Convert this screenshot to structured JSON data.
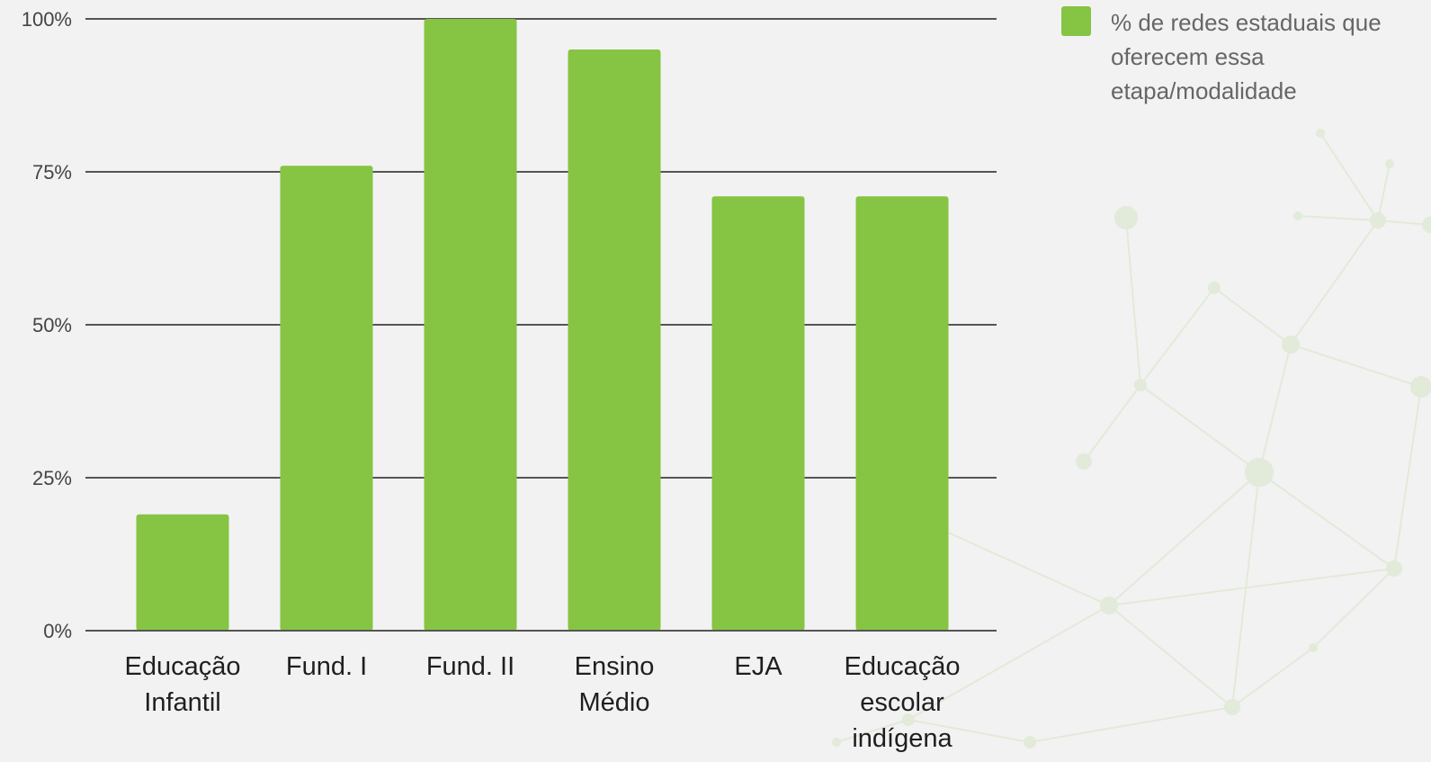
{
  "chart_data": {
    "type": "bar",
    "categories": [
      [
        "Educação",
        "Infantil"
      ],
      [
        "Fund. I"
      ],
      [
        "Fund. II"
      ],
      [
        "Ensino",
        "Médio"
      ],
      [
        "EJA"
      ],
      [
        "Educação",
        "escolar",
        "indígena"
      ]
    ],
    "series": [
      {
        "name": "% de redes estaduais que oferecem essa etapa/modalidade",
        "values": [
          19,
          76,
          100,
          95,
          71,
          71
        ],
        "color": "#86c443"
      }
    ],
    "y_ticks": [
      "0%",
      "25%",
      "50%",
      "75%",
      "100%"
    ],
    "y_tick_values": [
      0,
      25,
      50,
      75,
      100
    ],
    "ylim": [
      0,
      100
    ],
    "grid": true,
    "legend_position": "top-right",
    "title": "",
    "xlabel": "",
    "ylabel": ""
  },
  "colors": {
    "background": "#f2f2f2",
    "gridline": "#555555",
    "decoration": "#e2ead9"
  }
}
